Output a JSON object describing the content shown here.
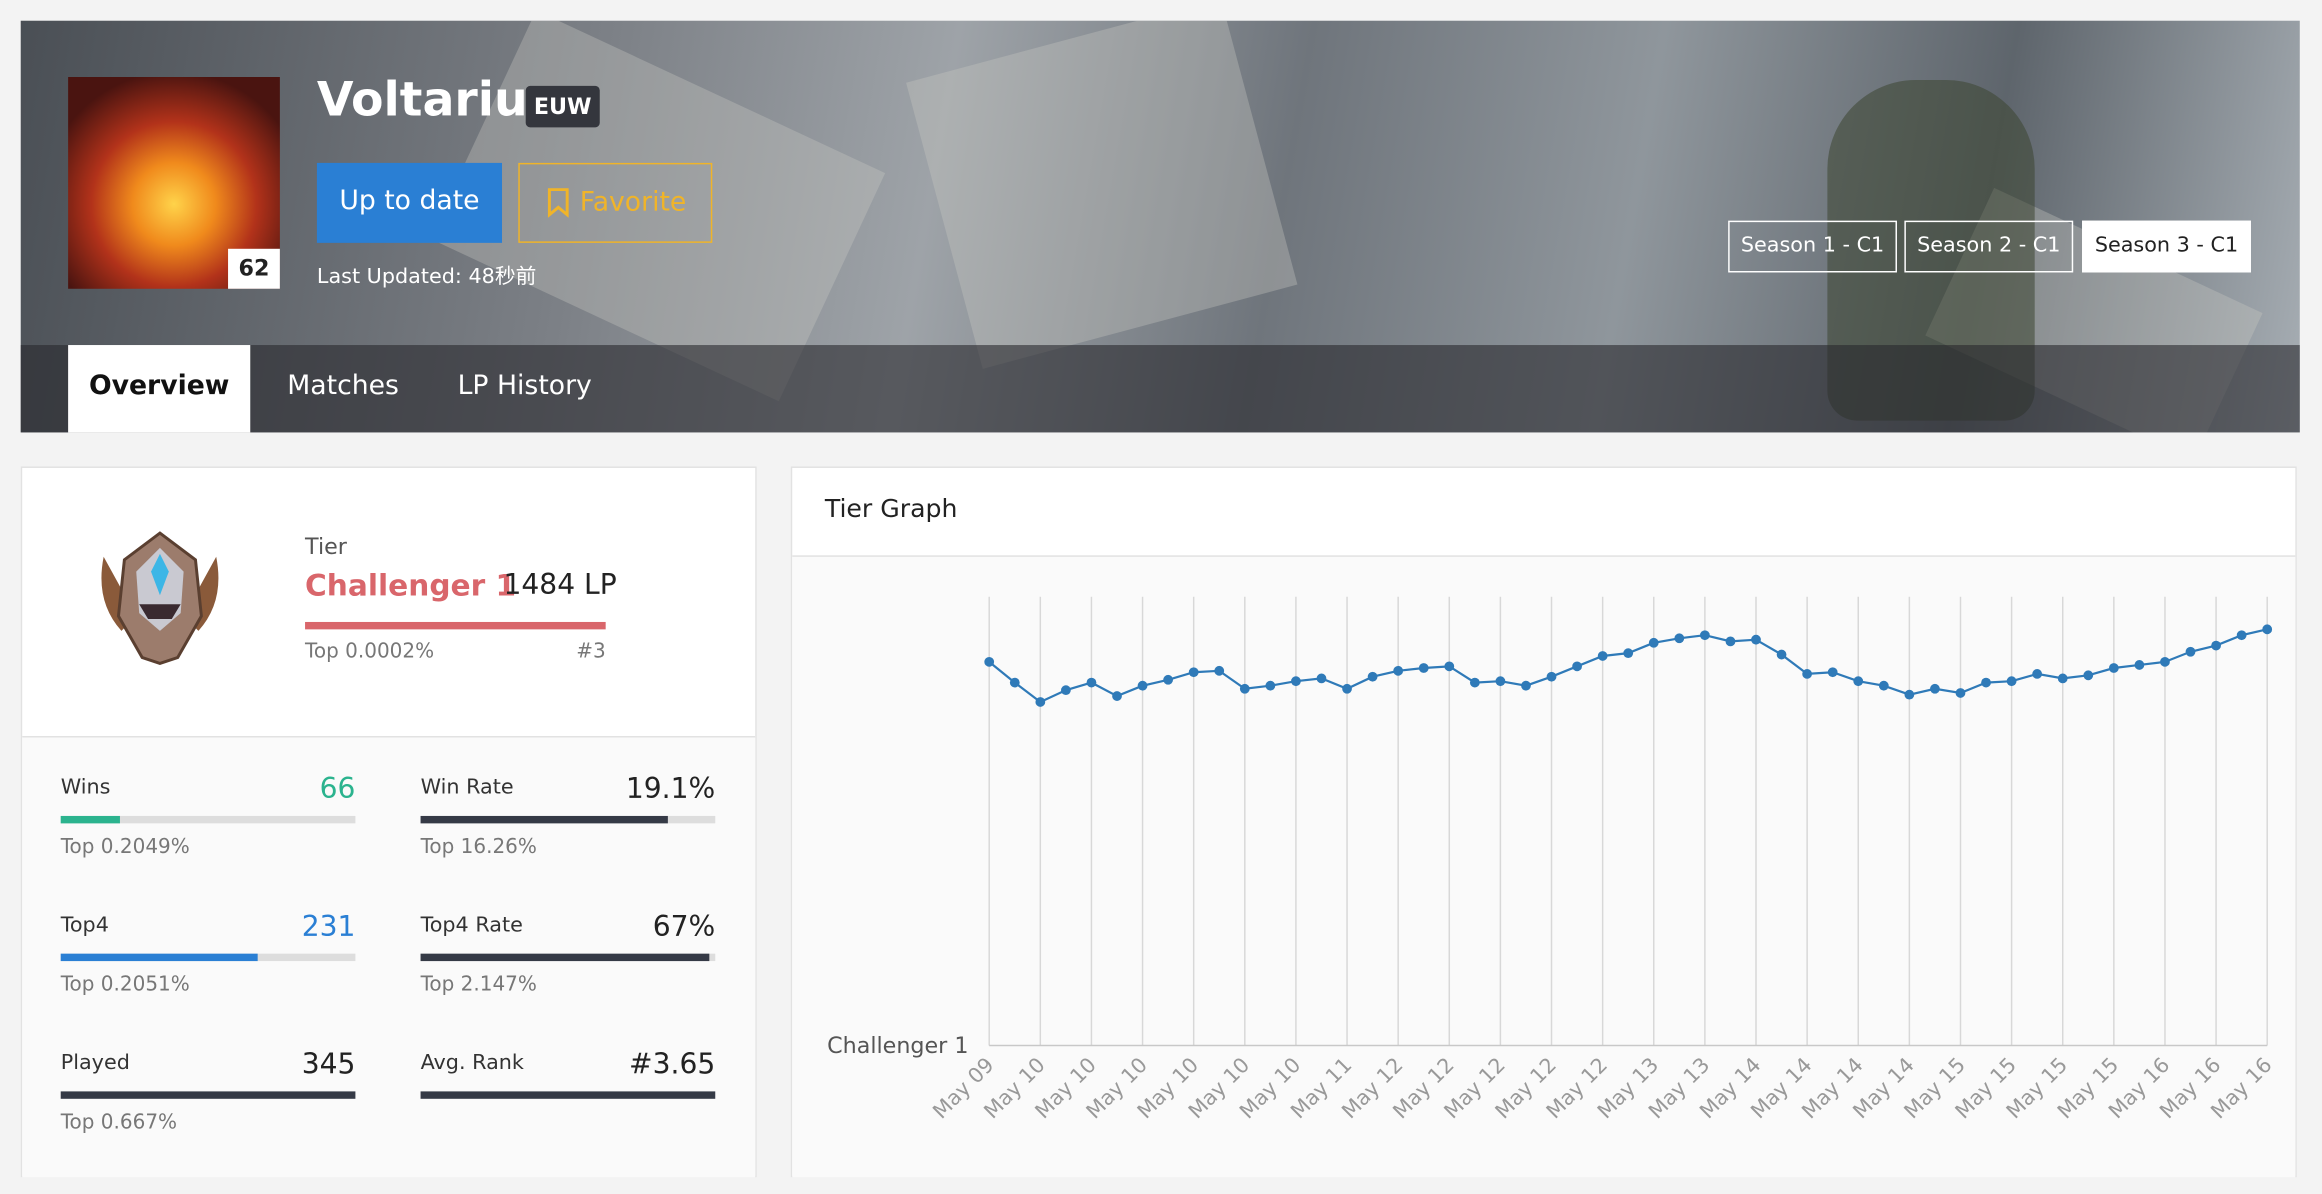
{
  "profile": {
    "name": "Voltariux",
    "region": "EUW",
    "level": "62",
    "update_button": "Up to date",
    "favorite_button": "Favorite",
    "last_updated": "Last Updated: 48秒前"
  },
  "seasons": [
    "Season 1 - C1",
    "Season 2 - C1",
    "Season 3 - C1"
  ],
  "tabs": [
    "Overview",
    "Matches",
    "LP History"
  ],
  "tier": {
    "label": "Tier",
    "name": "Challenger 1",
    "lp": "1484 LP",
    "top": "Top 0.0002%",
    "rank": "#3"
  },
  "stats": [
    {
      "label": "Wins",
      "value": "66",
      "top": "Top 0.2049%"
    },
    {
      "label": "Win Rate",
      "value": "19.1%",
      "top": "Top 16.26%"
    },
    {
      "label": "Top4",
      "value": "231",
      "top": "Top 0.2051%"
    },
    {
      "label": "Top4 Rate",
      "value": "67%",
      "top": "Top 2.147%"
    },
    {
      "label": "Played",
      "value": "345",
      "top": "Top 0.667%"
    },
    {
      "label": "Avg. Rank",
      "value": "#3.65",
      "top": ""
    }
  ],
  "chart_data": {
    "type": "line",
    "title": "Tier Graph",
    "categories": [
      "May 09",
      null,
      "May 10",
      null,
      "May 10",
      null,
      "May 10",
      null,
      "May 10",
      null,
      "May 10",
      null,
      "May 10",
      null,
      "May 11",
      null,
      "May 12",
      null,
      "May 12",
      null,
      "May 12",
      null,
      "May 12",
      null,
      "May 12",
      null,
      "May 13",
      null,
      "May 13",
      null,
      "May 14",
      null,
      "May 14",
      null,
      "May 14",
      null,
      "May 14",
      null,
      "May 15",
      null,
      "May 15",
      null,
      "May 15",
      null,
      "May 15",
      null,
      "May 16",
      null,
      "May 16",
      null,
      "May 16"
    ],
    "values": [
      1368,
      1294,
      1225,
      1267,
      1294,
      1246,
      1283,
      1304,
      1331,
      1336,
      1272,
      1283,
      1299,
      1309,
      1272,
      1315,
      1336,
      1346,
      1352,
      1294,
      1299,
      1283,
      1315,
      1352,
      1389,
      1399,
      1436,
      1452,
      1463,
      1441,
      1447,
      1394,
      1325,
      1331,
      1299,
      1283,
      1251,
      1272,
      1257,
      1294,
      1299,
      1325,
      1309,
      1320,
      1346,
      1357,
      1368,
      1404,
      1426,
      1463,
      1484
    ],
    "color": "#2f7ab8",
    "ylim": [
      0,
      1600
    ],
    "yticks": [
      {
        "value": 0,
        "label": "Challenger 1"
      }
    ],
    "grid": true
  }
}
